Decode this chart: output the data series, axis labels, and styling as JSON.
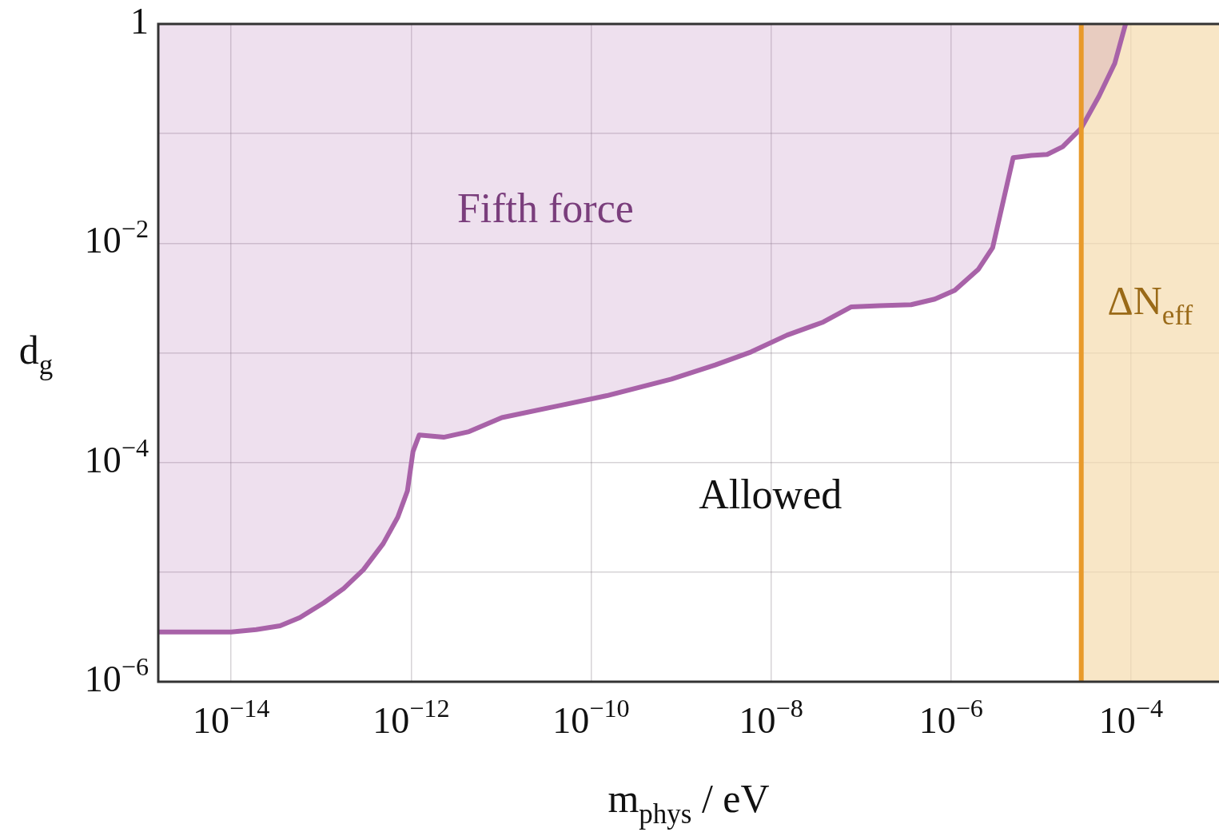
{
  "chart_data": {
    "type": "area",
    "xlabel": "m$_{phys}$ / eV",
    "ylabel": "d$_{g}$",
    "log": "xy",
    "grid": true,
    "legend": false,
    "xlim": [
      1.55e-15,
      0.00095
    ],
    "ylim": [
      1e-06,
      1
    ],
    "xticks": [
      {
        "value": 1e-14,
        "label": "10$^{−14}$"
      },
      {
        "value": 1e-12,
        "label": "10$^{−12}$"
      },
      {
        "value": 1e-10,
        "label": "10$^{−10}$"
      },
      {
        "value": 1e-08,
        "label": "10$^{−8}$"
      },
      {
        "value": 1e-06,
        "label": "10$^{−6}$"
      },
      {
        "value": 0.0001,
        "label": "10$^{−4}$"
      }
    ],
    "yticks": [
      {
        "value": 1e-06,
        "label": "10$^{−6}$"
      },
      {
        "value": 1e-05,
        "label": null
      },
      {
        "value": 0.0001,
        "label": "10$^{−4}$"
      },
      {
        "value": 0.001,
        "label": null
      },
      {
        "value": 0.01,
        "label": "10$^{−2}$"
      },
      {
        "value": 0.1,
        "label": null
      },
      1
    ],
    "series": [
      {
        "name": "Fifth force",
        "color": "#a862a8",
        "x": [
          1.55e-15,
          1.55e-15,
          1e-14,
          1.9e-14,
          3.5e-14,
          5.8e-14,
          1.07e-13,
          1.78e-13,
          2.95e-13,
          4.9e-13,
          7.1e-13,
          9.1e-13,
          1.05e-12,
          1.23e-12,
          2.3e-12,
          4.4e-12,
          1.02e-11,
          4.5e-11,
          1.5e-10,
          7.8e-10,
          2.4e-09,
          6e-09,
          1.5e-08,
          3.8e-08,
          7.8e-08,
          1.6e-07,
          3.6e-07,
          6.6e-07,
          1.1e-06,
          2e-06,
          2.9e-06,
          4.9e-06,
          7.8e-06,
          1.17e-05,
          1.74e-05,
          2.8e-05,
          4.4e-05,
          6.6e-05,
          8.7e-05
        ],
        "values": [
          1,
          2.84e-06,
          2.84e-06,
          2.99e-06,
          3.24e-06,
          3.85e-06,
          5.25e-06,
          7.08e-06,
          1.05e-05,
          1.82e-05,
          3.16e-05,
          5.5e-05,
          0.000126,
          0.000178,
          0.00017,
          0.000191,
          0.000257,
          0.000331,
          0.000407,
          0.000575,
          0.000776,
          0.00102,
          0.00145,
          0.00191,
          0.00263,
          0.00269,
          0.00275,
          0.00309,
          0.00372,
          0.00575,
          0.00912,
          0.0603,
          0.0631,
          0.0646,
          0.0759,
          0.112,
          0.219,
          0.437,
          1
        ]
      }
    ],
    "ref_lines": [
      {
        "axis": "x",
        "value": 2.8e-05,
        "color": "#e89a2a"
      }
    ],
    "bands": [
      {
        "axis": "x",
        "from": 2.8e-05,
        "to": 0.00095,
        "label": "ΔN$_{eff}$",
        "color": "#f5dcae"
      }
    ],
    "annotations": [
      "Allowed"
    ]
  }
}
